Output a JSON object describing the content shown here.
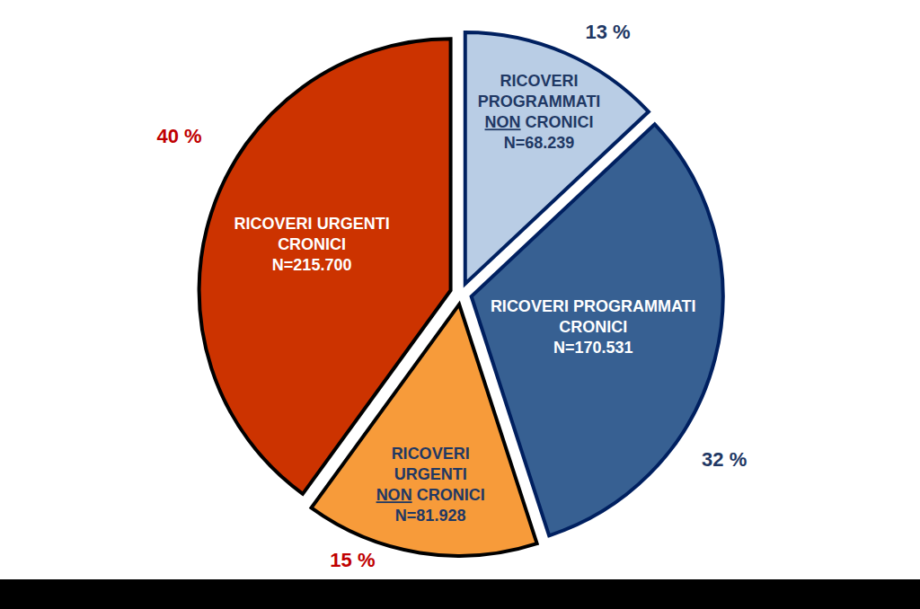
{
  "chart_data": {
    "type": "pie",
    "categories": [
      "RICOVERI PROGRAMMATI NON CRONICI",
      "RICOVERI PROGRAMMATI CRONICI",
      "RICOVERI URGENTI NON CRONICI",
      "RICOVERI URGENTI CRONICI"
    ],
    "count_labels": [
      "N=68.239",
      "N=170.531",
      "N=81.928",
      "N=215.700"
    ],
    "values": [
      13,
      32,
      15,
      40
    ],
    "value_labels": [
      "13 %",
      "32 %",
      "15 %",
      "40 %"
    ],
    "colors": [
      "#b9cde5",
      "#376092",
      "#f79b3a",
      "#cc3300"
    ],
    "data_labels": true
  }
}
